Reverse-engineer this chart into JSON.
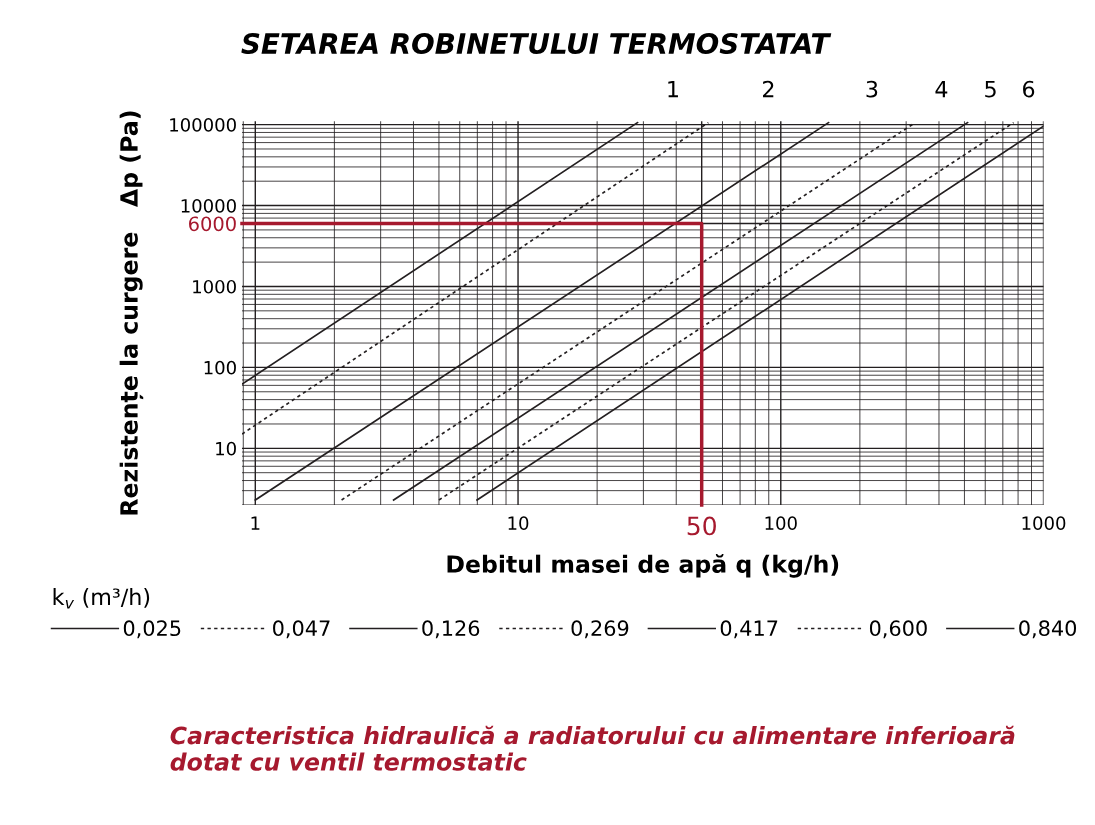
{
  "chart_data": {
    "type": "line",
    "title": "SETAREA ROBINETULUI TERMOSTATAT",
    "xlabel": "Debitul masei de apă q (kg/h)",
    "ylabel": "Rezistențe la curgere   Δp (Pa)",
    "legend_title": "k$_{v}$ (m³/h)",
    "legend": "bottom",
    "log": "xy",
    "grid": true,
    "xlim": [
      0.89,
      1000
    ],
    "ylim": [
      2,
      110000
    ],
    "xticks": [
      1,
      10,
      50,
      100,
      1000
    ],
    "yticks": [
      10,
      100,
      1000,
      6000,
      10000,
      100000
    ],
    "series": [
      {
        "name": "0,025",
        "color": "#231f20",
        "line_style": "solid",
        "x": [
          0.89,
          28.5
        ],
        "values": [
          62,
          106000
        ]
      },
      {
        "name": "0,047",
        "color": "#231f20",
        "line_style": "dotted",
        "x": [
          0.89,
          53
        ],
        "values": [
          15,
          106000
        ]
      },
      {
        "name": "0,126",
        "color": "#231f20",
        "line_style": "solid",
        "x": [
          1,
          152
        ],
        "values": [
          2.3,
          106000
        ]
      },
      {
        "name": "0,269",
        "color": "#231f20",
        "line_style": "dotted",
        "x": [
          2.13,
          325
        ],
        "values": [
          2.3,
          106000
        ]
      },
      {
        "name": "0,417",
        "color": "#231f20",
        "line_style": "solid",
        "x": [
          3.36,
          514
        ],
        "values": [
          2.3,
          106000
        ]
      },
      {
        "name": "0,600",
        "color": "#231f20",
        "line_style": "dotted",
        "x": [
          5.0,
          769
        ],
        "values": [
          2.3,
          106000
        ]
      },
      {
        "name": "0,840",
        "color": "#231f20",
        "line_style": "solid",
        "x": [
          6.98,
          1000
        ],
        "values": [
          2.3,
          96000
        ]
      },
      {
        "color": "#a6192e",
        "line_style": "solid",
        "x": [
          0.89,
          50,
          50
        ],
        "values": [
          6000,
          6000,
          2
        ]
      }
    ],
    "annotations": [
      "1",
      "2",
      "3",
      "4",
      "5",
      "6",
      "Caracteristica hidraulică a radiatorului cu alimentare inferioară dotat cu ventil termostatic"
    ]
  }
}
